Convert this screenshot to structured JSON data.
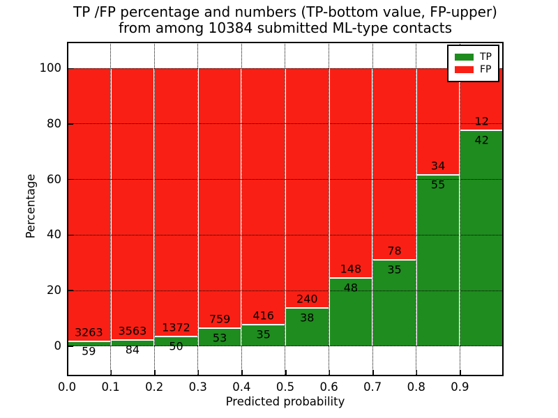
{
  "title": {
    "line1": "TP /FP percentage and numbers (TP-bottom value, FP-upper)",
    "line2": "from among 10384 submitted ML-type contacts"
  },
  "chart_data": {
    "type": "bar",
    "stacked": true,
    "normalized": "each bin scaled to 100 percent",
    "title": "TP /FP percentage and numbers (TP-bottom value, FP-upper)\nfrom among 10384 submitted ML-type contacts",
    "xlabel": "Predicted probability",
    "ylabel": "Percentage",
    "xlim": [
      0.0,
      1.0
    ],
    "ylim": [
      -10.8,
      109.6
    ],
    "bin_width": 0.1,
    "bin_starts": [
      0.0,
      0.1,
      0.2,
      0.3,
      0.4,
      0.5,
      0.6,
      0.7,
      0.8,
      0.9
    ],
    "x_tick_labels": [
      "0.0",
      "0.1",
      "0.2",
      "0.3",
      "0.4",
      "0.5",
      "0.6",
      "0.7",
      "0.8",
      "0.9"
    ],
    "y_ticks": [
      0,
      20,
      40,
      60,
      80,
      100
    ],
    "y_tick_labels": [
      "0",
      "20",
      "40",
      "60",
      "80",
      "100"
    ],
    "series": [
      {
        "name": "TP",
        "color": "#1e8c1e",
        "values": [
          59,
          84,
          50,
          53,
          35,
          38,
          48,
          35,
          55,
          42
        ]
      },
      {
        "name": "FP",
        "color": "#fa1f14",
        "values": [
          3263,
          3563,
          1372,
          759,
          416,
          240,
          148,
          78,
          34,
          12
        ]
      }
    ],
    "legend": {
      "position": "upper right",
      "entries": [
        "TP",
        "FP"
      ]
    },
    "grid": {
      "style": "dotted",
      "color": "#000000"
    },
    "bar_edge_color": "#ffffff",
    "background": "#ffffff"
  }
}
